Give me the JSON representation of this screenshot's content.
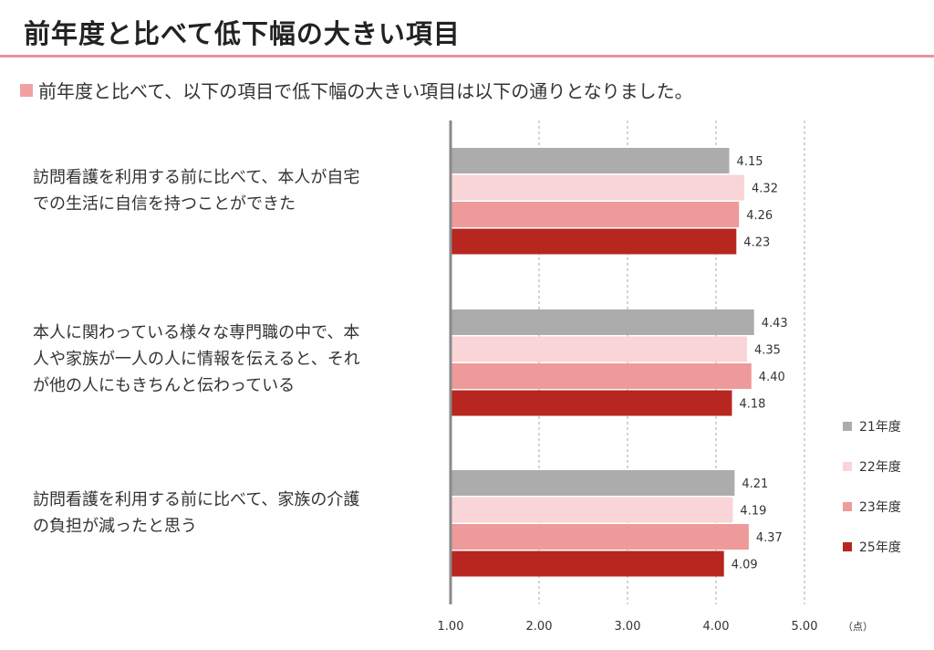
{
  "page": {
    "title": "前年度と比べて低下幅の大きい項目",
    "subtitle": "前年度と比べて、以下の項目で低下幅の大きい項目は以下の通りとなりました。"
  },
  "chart_data": {
    "type": "bar",
    "orientation": "horizontal",
    "categories": [
      "訪問看護を利用する前に比べて、本人が自宅での生活に自信を持つことができた",
      "本人に関わっている様々な専門職の中で、本人や家族が一人の人に情報を伝えると、それが他の人にもきちんと伝わっている",
      "訪問看護を利用する前に比べて、家族の介護の負担が減ったと思う"
    ],
    "category_lines": [
      [
        "訪問看護を利用する前に比べて、本人が自宅",
        "での生活に自信を持つことができた"
      ],
      [
        "本人に関わっている様々な専門職の中で、本",
        "人や家族が一人の人に情報を伝えると、それ",
        "が他の人にもきちんと伝わっている"
      ],
      [
        "訪問看護を利用する前に比べて、家族の介護",
        "の負担が減ったと思う"
      ]
    ],
    "series": [
      {
        "name": "21年度",
        "color": "#acacac",
        "values": [
          4.15,
          4.43,
          4.21
        ],
        "labels": [
          "4.15",
          "4.43",
          "4.21"
        ]
      },
      {
        "name": "22年度",
        "color": "#f9d5d8",
        "values": [
          4.32,
          4.35,
          4.19
        ],
        "labels": [
          "4.32",
          "4.35",
          "4.19"
        ]
      },
      {
        "name": "23年度",
        "color": "#ef9a9a",
        "values": [
          4.26,
          4.4,
          4.37
        ],
        "labels": [
          "4.26",
          "4.40",
          "4.37"
        ]
      },
      {
        "name": "25年度",
        "color": "#b7261f",
        "values": [
          4.23,
          4.18,
          4.09
        ],
        "labels": [
          "4.23",
          "4.18",
          "4.09"
        ]
      }
    ],
    "xlim": [
      1,
      5
    ],
    "xticks": [
      1,
      2,
      3,
      4,
      5
    ],
    "xtick_labels": [
      "1.00",
      "2.00",
      "3.00",
      "4.00",
      "5.00"
    ],
    "x_unit": "（点）",
    "grid": "vertical-dashed",
    "legend_position": "right-bottom"
  }
}
